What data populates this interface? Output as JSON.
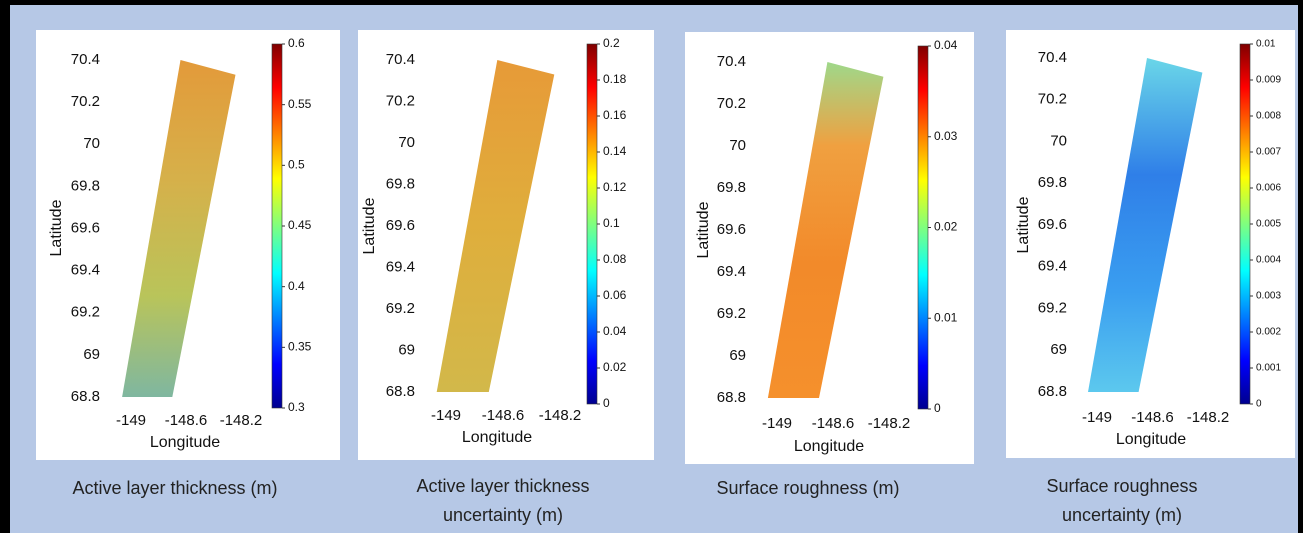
{
  "panels": [
    {
      "ylabel": "Latitude",
      "xlabel": "Longitude",
      "ylim": [
        68.8,
        70.4
      ],
      "yticks": [
        68.8,
        69,
        69.2,
        69.4,
        69.6,
        69.8,
        70,
        70.2,
        70.4
      ],
      "xticks": [
        -149,
        -148.6,
        -148.2
      ],
      "colorbar": {
        "lim": [
          0.3,
          0.6
        ],
        "ticks": [
          0.3,
          0.35,
          0.4,
          0.45,
          0.5,
          0.55,
          0.6
        ]
      },
      "caption": [
        "Active layer thickness (m)"
      ]
    },
    {
      "ylabel": "Latitude",
      "xlabel": "Longitude",
      "ylim": [
        68.8,
        70.4
      ],
      "yticks": [
        68.8,
        69,
        69.2,
        69.4,
        69.6,
        69.8,
        70,
        70.2,
        70.4
      ],
      "xticks": [
        -149,
        -148.6,
        -148.2
      ],
      "colorbar": {
        "lim": [
          0,
          0.2
        ],
        "ticks": [
          0,
          0.02,
          0.04,
          0.06,
          0.08,
          0.1,
          0.12,
          0.14,
          0.16,
          0.18,
          0.2
        ]
      },
      "caption": [
        "Active layer thickness",
        "uncertainty (m)"
      ]
    },
    {
      "ylabel": "Latitude",
      "xlabel": "Longitude",
      "ylim": [
        68.8,
        70.4
      ],
      "yticks": [
        68.8,
        69,
        69.2,
        69.4,
        69.6,
        69.8,
        70,
        70.2,
        70.4
      ],
      "xticks": [
        -149,
        -148.6,
        -148.2
      ],
      "colorbar": {
        "lim": [
          0,
          0.04
        ],
        "ticks": [
          0,
          0.01,
          0.02,
          0.03,
          0.04
        ]
      },
      "caption": [
        "Surface roughness (m)"
      ]
    },
    {
      "ylabel": "Latitude",
      "xlabel": "Longitude",
      "ylim": [
        68.8,
        70.4
      ],
      "yticks": [
        68.8,
        69,
        69.2,
        69.4,
        69.6,
        69.8,
        70,
        70.2,
        70.4
      ],
      "xticks": [
        -149,
        -148.6,
        -148.2
      ],
      "colorbar": {
        "lim": [
          0,
          0.01
        ],
        "ticks": [
          0,
          0.001,
          0.002,
          0.003,
          0.004,
          0.005,
          0.006,
          0.007,
          0.008,
          0.009,
          0.01
        ]
      },
      "caption": [
        "Surface roughness",
        "uncertainty (m)"
      ]
    }
  ]
}
